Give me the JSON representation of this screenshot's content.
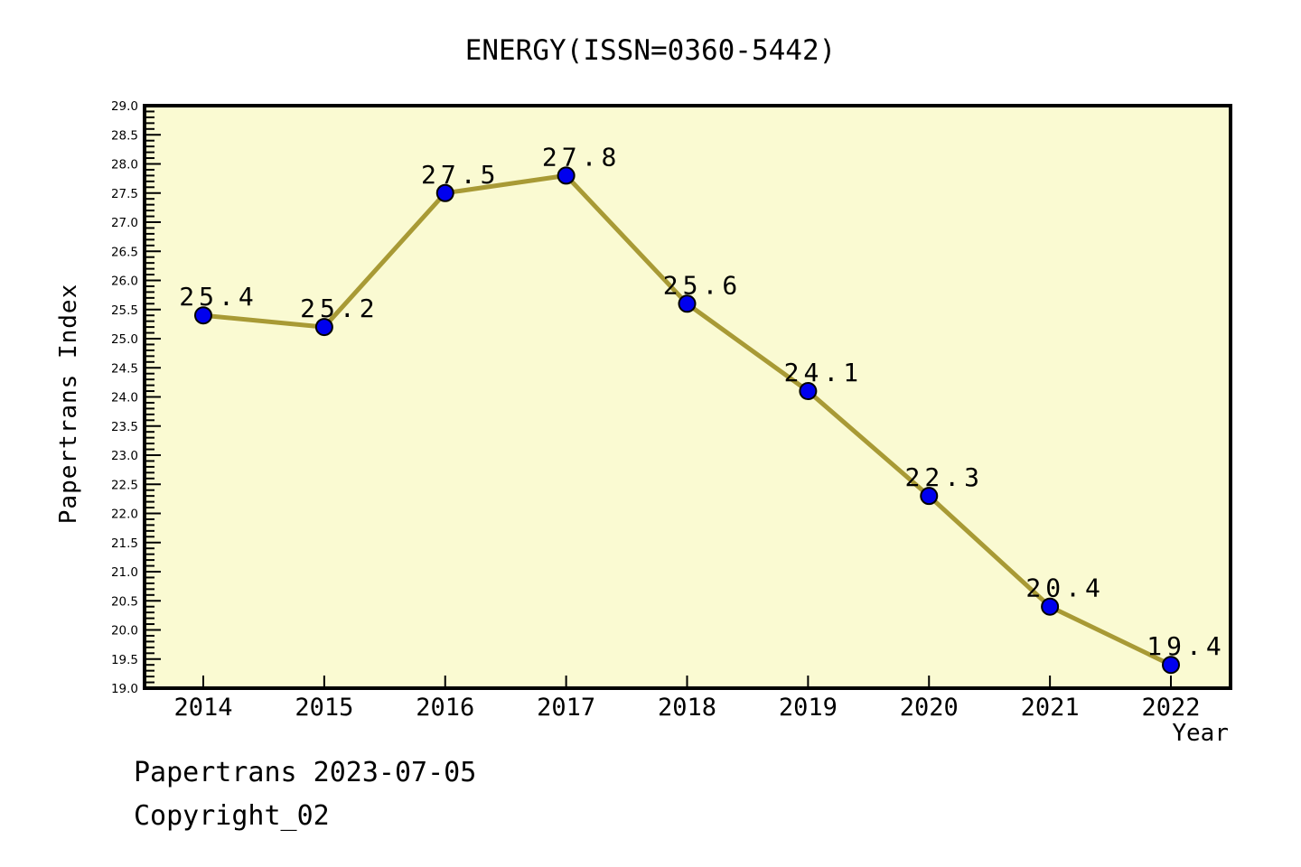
{
  "chart_data": {
    "type": "line",
    "title": "ENERGY(ISSN=0360-5442)",
    "xlabel": "Year",
    "ylabel": "Papertrans Index",
    "categories": [
      "2014",
      "2015",
      "2016",
      "2017",
      "2018",
      "2019",
      "2020",
      "2021",
      "2022"
    ],
    "values": [
      25.4,
      25.2,
      27.5,
      27.8,
      25.6,
      24.1,
      22.3,
      20.4,
      19.4
    ],
    "point_labels": [
      "25.4",
      "25.2",
      "27.5",
      "27.8",
      "25.6",
      "24.1",
      "22.3",
      "20.4",
      "19.4"
    ],
    "ylim": [
      19.0,
      29.0
    ],
    "y_major_step": 0.5,
    "y_minor_step": 0.1,
    "grid": false,
    "legend": "none",
    "colors": {
      "page_background": "#FFFFFF",
      "plot_background": "#FAFAD2",
      "line": "#A89A35",
      "marker_fill": "#0000EE",
      "marker_edge": "#000000",
      "axis": "#000000",
      "text": "#000000"
    }
  },
  "footer": {
    "line1": "Papertrans 2023-07-05",
    "line2": "Copyright_02"
  }
}
